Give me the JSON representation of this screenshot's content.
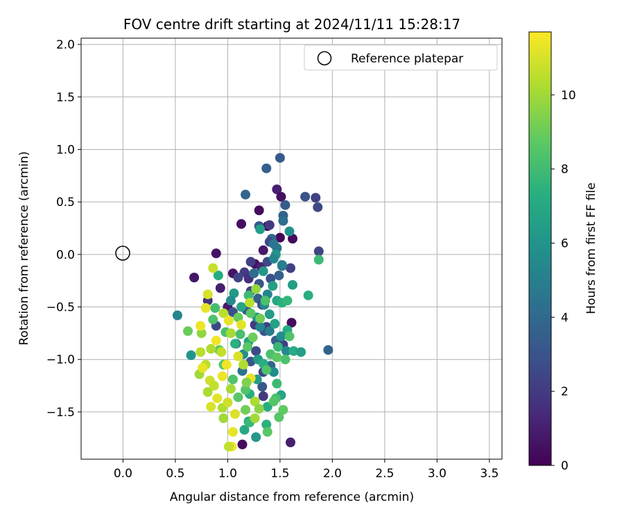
{
  "chart_data": {
    "type": "scatter",
    "title": "FOV centre drift starting at 2024/11/11 15:28:17",
    "xlabel": "Angular distance from reference (arcmin)",
    "ylabel": "Rotation from reference (arcmin)",
    "xlim": [
      -0.4,
      3.62
    ],
    "ylim": [
      -1.95,
      2.06
    ],
    "xticks": [
      0.0,
      0.5,
      1.0,
      1.5,
      2.0,
      2.5,
      3.0,
      3.5
    ],
    "xtick_labels": [
      "0.0",
      "0.5",
      "1.0",
      "1.5",
      "2.0",
      "2.5",
      "3.0",
      "3.5"
    ],
    "yticks": [
      -1.5,
      -1.0,
      -0.5,
      0.0,
      0.5,
      1.0,
      1.5,
      2.0
    ],
    "ytick_labels": [
      "−1.5",
      "−1.0",
      "−0.5",
      "0.0",
      "0.5",
      "1.0",
      "1.5",
      "2.0"
    ],
    "grid": true,
    "legend": {
      "placement": "top-right",
      "entries": [
        {
          "label": "Reference platepar",
          "marker": "open-circle"
        }
      ]
    },
    "reference_point": {
      "x": 0.0,
      "y": 0.0
    },
    "colorbar": {
      "label": "Hours from first FF file",
      "colormap": "viridis",
      "range": [
        0,
        11.7
      ],
      "ticks": [
        0,
        2,
        4,
        6,
        8,
        10
      ],
      "tick_labels": [
        "0",
        "2",
        "4",
        "6",
        "8",
        "10"
      ]
    },
    "points": [
      {
        "x": 0.89,
        "y": 0.01,
        "h": 0.6
      },
      {
        "x": 1.13,
        "y": 0.29,
        "h": 0.4
      },
      {
        "x": 1.3,
        "y": 0.42,
        "h": 0.3
      },
      {
        "x": 1.38,
        "y": 0.27,
        "h": 0.2
      },
      {
        "x": 1.47,
        "y": 0.62,
        "h": 1.0
      },
      {
        "x": 1.51,
        "y": 0.55,
        "h": 0.5
      },
      {
        "x": 1.62,
        "y": 0.15,
        "h": 0.3
      },
      {
        "x": 1.5,
        "y": 0.16,
        "h": 0.2
      },
      {
        "x": 1.34,
        "y": 0.04,
        "h": 0.8
      },
      {
        "x": 1.26,
        "y": -0.09,
        "h": 0.5
      },
      {
        "x": 1.32,
        "y": -0.12,
        "h": 1.2
      },
      {
        "x": 1.61,
        "y": -0.65,
        "h": 0.4
      },
      {
        "x": 1.6,
        "y": -1.79,
        "h": 1.0
      },
      {
        "x": 1.14,
        "y": -1.81,
        "h": 0.3
      },
      {
        "x": 0.68,
        "y": -0.22,
        "h": 0.7
      },
      {
        "x": 0.93,
        "y": -0.32,
        "h": 1.0
      },
      {
        "x": 1.0,
        "y": -0.5,
        "h": 0.8
      },
      {
        "x": 0.81,
        "y": -0.44,
        "h": 1.7
      },
      {
        "x": 1.05,
        "y": -0.18,
        "h": 0.6
      },
      {
        "x": 1.37,
        "y": 0.82,
        "h": 3.5
      },
      {
        "x": 1.5,
        "y": 0.92,
        "h": 3.3
      },
      {
        "x": 1.17,
        "y": 0.57,
        "h": 3.8
      },
      {
        "x": 1.74,
        "y": 0.55,
        "h": 3.0
      },
      {
        "x": 1.84,
        "y": 0.54,
        "h": 2.3
      },
      {
        "x": 1.86,
        "y": 0.45,
        "h": 2.6
      },
      {
        "x": 1.87,
        "y": 0.03,
        "h": 2.4
      },
      {
        "x": 1.96,
        "y": -0.91,
        "h": 3.7
      },
      {
        "x": 1.55,
        "y": 0.47,
        "h": 3.3
      },
      {
        "x": 1.53,
        "y": 0.37,
        "h": 3.7
      },
      {
        "x": 1.53,
        "y": 0.32,
        "h": 4.2
      },
      {
        "x": 1.4,
        "y": 0.28,
        "h": 2.0
      },
      {
        "x": 1.3,
        "y": 0.27,
        "h": 3.2
      },
      {
        "x": 1.42,
        "y": 0.15,
        "h": 3.9
      },
      {
        "x": 1.4,
        "y": 0.12,
        "h": 2.7
      },
      {
        "x": 1.44,
        "y": 0.1,
        "h": 4.6
      },
      {
        "x": 1.47,
        "y": 0.06,
        "h": 4.5
      },
      {
        "x": 1.22,
        "y": -0.07,
        "h": 2.2
      },
      {
        "x": 1.38,
        "y": -0.07,
        "h": 2.6
      },
      {
        "x": 1.16,
        "y": -0.17,
        "h": 2.0
      },
      {
        "x": 1.1,
        "y": -0.22,
        "h": 2.4
      },
      {
        "x": 1.2,
        "y": -0.23,
        "h": 1.6
      },
      {
        "x": 1.41,
        "y": -0.23,
        "h": 2.9
      },
      {
        "x": 1.49,
        "y": -0.2,
        "h": 3.6
      },
      {
        "x": 1.6,
        "y": -0.13,
        "h": 2.2
      },
      {
        "x": 1.52,
        "y": -0.11,
        "h": 4.3
      },
      {
        "x": 1.3,
        "y": -0.28,
        "h": 3.1
      },
      {
        "x": 1.25,
        "y": -0.18,
        "h": 4.1
      },
      {
        "x": 1.22,
        "y": -0.35,
        "h": 2.4
      },
      {
        "x": 1.29,
        "y": -0.42,
        "h": 3.6
      },
      {
        "x": 1.33,
        "y": -0.48,
        "h": 2.1
      },
      {
        "x": 1.18,
        "y": -0.53,
        "h": 3.3
      },
      {
        "x": 1.05,
        "y": -0.55,
        "h": 2.8
      },
      {
        "x": 0.89,
        "y": -0.68,
        "h": 2.5
      },
      {
        "x": 1.26,
        "y": -0.67,
        "h": 2.0
      },
      {
        "x": 1.35,
        "y": -0.73,
        "h": 3.0
      },
      {
        "x": 1.08,
        "y": -0.85,
        "h": 3.4
      },
      {
        "x": 1.22,
        "y": -1.02,
        "h": 3.1
      },
      {
        "x": 1.14,
        "y": -1.11,
        "h": 4.4
      },
      {
        "x": 1.34,
        "y": -1.12,
        "h": 2.4
      },
      {
        "x": 1.33,
        "y": -1.26,
        "h": 3.2
      },
      {
        "x": 1.34,
        "y": -1.35,
        "h": 2.0
      },
      {
        "x": 1.4,
        "y": -1.09,
        "h": 4.6
      },
      {
        "x": 1.27,
        "y": -0.92,
        "h": 2.6
      },
      {
        "x": 1.37,
        "y": -0.69,
        "h": 2.2
      },
      {
        "x": 1.46,
        "y": -0.82,
        "h": 3.5
      },
      {
        "x": 1.53,
        "y": -0.86,
        "h": 2.2
      },
      {
        "x": 1.41,
        "y": -1.06,
        "h": 3.8
      },
      {
        "x": 1.62,
        "y": -0.29,
        "h": 6.5
      },
      {
        "x": 1.46,
        "y": 0.0,
        "h": 6.0
      },
      {
        "x": 1.31,
        "y": 0.24,
        "h": 6.5
      },
      {
        "x": 1.59,
        "y": 0.22,
        "h": 5.8
      },
      {
        "x": 1.44,
        "y": -0.04,
        "h": 5.4
      },
      {
        "x": 1.52,
        "y": -0.1,
        "h": 5.0
      },
      {
        "x": 1.34,
        "y": -0.16,
        "h": 6.2
      },
      {
        "x": 1.43,
        "y": -0.3,
        "h": 6.6
      },
      {
        "x": 1.38,
        "y": -0.38,
        "h": 5.2
      },
      {
        "x": 1.47,
        "y": -0.44,
        "h": 6.8
      },
      {
        "x": 1.52,
        "y": -0.46,
        "h": 7.4
      },
      {
        "x": 1.57,
        "y": -0.44,
        "h": 7.7
      },
      {
        "x": 1.35,
        "y": -0.48,
        "h": 5.6
      },
      {
        "x": 1.4,
        "y": -0.57,
        "h": 6.4
      },
      {
        "x": 1.28,
        "y": -0.6,
        "h": 6.0
      },
      {
        "x": 1.31,
        "y": -0.69,
        "h": 5.4
      },
      {
        "x": 1.4,
        "y": -0.73,
        "h": 5.0
      },
      {
        "x": 1.45,
        "y": -0.66,
        "h": 6.7
      },
      {
        "x": 1.57,
        "y": -0.72,
        "h": 7.2
      },
      {
        "x": 1.51,
        "y": -0.78,
        "h": 5.8
      },
      {
        "x": 1.48,
        "y": -0.88,
        "h": 7.8
      },
      {
        "x": 1.56,
        "y": -0.92,
        "h": 5.5
      },
      {
        "x": 1.63,
        "y": -0.92,
        "h": 7.2
      },
      {
        "x": 1.7,
        "y": -0.93,
        "h": 6.5
      },
      {
        "x": 1.2,
        "y": -0.39,
        "h": 7.9
      },
      {
        "x": 1.06,
        "y": -0.37,
        "h": 6.3
      },
      {
        "x": 1.03,
        "y": -0.44,
        "h": 5.5
      },
      {
        "x": 1.13,
        "y": -0.5,
        "h": 6.8
      },
      {
        "x": 0.91,
        "y": -0.2,
        "h": 7.2
      },
      {
        "x": 1.77,
        "y": -0.39,
        "h": 7.3
      },
      {
        "x": 1.87,
        "y": -0.05,
        "h": 7.9
      },
      {
        "x": 0.52,
        "y": -0.58,
        "h": 5.3
      },
      {
        "x": 0.65,
        "y": -0.96,
        "h": 6.0
      },
      {
        "x": 1.07,
        "y": -0.85,
        "h": 7.4
      },
      {
        "x": 1.2,
        "y": -0.83,
        "h": 6.6
      },
      {
        "x": 1.15,
        "y": -0.95,
        "h": 5.8
      },
      {
        "x": 1.29,
        "y": -1.0,
        "h": 6.3
      },
      {
        "x": 1.34,
        "y": -1.04,
        "h": 7.3
      },
      {
        "x": 1.44,
        "y": -1.12,
        "h": 5.6
      },
      {
        "x": 1.28,
        "y": -1.19,
        "h": 6.4
      },
      {
        "x": 1.21,
        "y": -1.33,
        "h": 7.2
      },
      {
        "x": 1.51,
        "y": -1.34,
        "h": 6.8
      },
      {
        "x": 1.38,
        "y": -1.45,
        "h": 7.2
      },
      {
        "x": 1.2,
        "y": -1.59,
        "h": 6.8
      },
      {
        "x": 1.27,
        "y": -1.74,
        "h": 6.2
      },
      {
        "x": 1.16,
        "y": -1.67,
        "h": 7.0
      },
      {
        "x": 1.21,
        "y": -1.6,
        "h": 7.8
      },
      {
        "x": 1.37,
        "y": -1.62,
        "h": 7.4
      },
      {
        "x": 1.46,
        "y": -1.37,
        "h": 8.2
      },
      {
        "x": 1.47,
        "y": -1.23,
        "h": 7.9
      },
      {
        "x": 1.55,
        "y": -1.0,
        "h": 8.3
      },
      {
        "x": 1.59,
        "y": -0.78,
        "h": 8.4
      },
      {
        "x": 1.36,
        "y": -0.44,
        "h": 8.3
      },
      {
        "x": 1.22,
        "y": -0.56,
        "h": 8.6
      },
      {
        "x": 1.1,
        "y": -0.6,
        "h": 8.9
      },
      {
        "x": 0.88,
        "y": -0.51,
        "h": 8.1
      },
      {
        "x": 0.86,
        "y": -0.62,
        "h": 8.4
      },
      {
        "x": 0.98,
        "y": -0.74,
        "h": 8.3
      },
      {
        "x": 1.12,
        "y": -0.76,
        "h": 8.2
      },
      {
        "x": 1.19,
        "y": -0.88,
        "h": 8.6
      },
      {
        "x": 1.41,
        "y": -0.95,
        "h": 8.3
      },
      {
        "x": 1.47,
        "y": -0.98,
        "h": 8.7
      },
      {
        "x": 1.37,
        "y": -1.1,
        "h": 8.4
      },
      {
        "x": 1.44,
        "y": -1.4,
        "h": 8.5
      },
      {
        "x": 1.53,
        "y": -1.48,
        "h": 8.8
      },
      {
        "x": 1.49,
        "y": -1.55,
        "h": 8.6
      },
      {
        "x": 1.38,
        "y": -1.69,
        "h": 8.6
      },
      {
        "x": 1.1,
        "y": -1.36,
        "h": 8.6
      },
      {
        "x": 1.05,
        "y": -1.19,
        "h": 8.4
      },
      {
        "x": 1.17,
        "y": -1.29,
        "h": 8.5
      },
      {
        "x": 0.96,
        "y": -1.05,
        "h": 8.7
      },
      {
        "x": 0.92,
        "y": -0.91,
        "h": 8.8
      },
      {
        "x": 0.62,
        "y": -0.73,
        "h": 9.0
      },
      {
        "x": 1.24,
        "y": -0.79,
        "h": 9.0
      },
      {
        "x": 1.31,
        "y": -0.61,
        "h": 9.1
      },
      {
        "x": 1.17,
        "y": -1.48,
        "h": 9.1
      },
      {
        "x": 0.75,
        "y": -0.75,
        "h": 9.7
      },
      {
        "x": 0.74,
        "y": -0.93,
        "h": 10.4
      },
      {
        "x": 0.79,
        "y": -1.05,
        "h": 10.5
      },
      {
        "x": 0.83,
        "y": -1.2,
        "h": 10.8
      },
      {
        "x": 0.73,
        "y": -1.14,
        "h": 10.0
      },
      {
        "x": 0.76,
        "y": -1.08,
        "h": 11.3
      },
      {
        "x": 0.81,
        "y": -1.31,
        "h": 10.2
      },
      {
        "x": 0.84,
        "y": -1.45,
        "h": 11.0
      },
      {
        "x": 0.95,
        "y": -1.46,
        "h": 10.3
      },
      {
        "x": 0.9,
        "y": -1.37,
        "h": 11.2
      },
      {
        "x": 0.87,
        "y": -1.25,
        "h": 10.6
      },
      {
        "x": 0.95,
        "y": -1.16,
        "h": 11.4
      },
      {
        "x": 1.03,
        "y": -1.28,
        "h": 10.1
      },
      {
        "x": 1.0,
        "y": -1.41,
        "h": 10.8
      },
      {
        "x": 1.07,
        "y": -1.52,
        "h": 11.1
      },
      {
        "x": 1.05,
        "y": -1.69,
        "h": 11.3
      },
      {
        "x": 1.04,
        "y": -1.83,
        "h": 11.5
      },
      {
        "x": 1.01,
        "y": -1.83,
        "h": 10.6
      },
      {
        "x": 0.96,
        "y": -1.56,
        "h": 10.0
      },
      {
        "x": 0.81,
        "y": -0.38,
        "h": 11.0
      },
      {
        "x": 0.86,
        "y": -0.13,
        "h": 10.7
      },
      {
        "x": 0.79,
        "y": -0.51,
        "h": 11.3
      },
      {
        "x": 0.96,
        "y": -0.56,
        "h": 10.5
      },
      {
        "x": 1.01,
        "y": -0.63,
        "h": 11.3
      },
      {
        "x": 1.03,
        "y": -0.75,
        "h": 10.1
      },
      {
        "x": 0.89,
        "y": -0.82,
        "h": 11.5
      },
      {
        "x": 0.84,
        "y": -0.9,
        "h": 10.3
      },
      {
        "x": 0.94,
        "y": -0.93,
        "h": 10.6
      },
      {
        "x": 1.1,
        "y": -0.97,
        "h": 11.0
      },
      {
        "x": 1.15,
        "y": -1.05,
        "h": 10.3
      },
      {
        "x": 1.22,
        "y": -1.18,
        "h": 11.3
      },
      {
        "x": 1.26,
        "y": -1.4,
        "h": 10.2
      },
      {
        "x": 1.3,
        "y": -1.47,
        "h": 9.6
      },
      {
        "x": 1.26,
        "y": -1.56,
        "h": 10.0
      },
      {
        "x": 1.21,
        "y": -0.46,
        "h": 10.5
      },
      {
        "x": 1.13,
        "y": -0.67,
        "h": 11.2
      },
      {
        "x": 1.27,
        "y": -0.33,
        "h": 9.8
      },
      {
        "x": 0.99,
        "y": -1.05,
        "h": 11.5
      },
      {
        "x": 1.18,
        "y": -1.22,
        "h": 9.4
      },
      {
        "x": 0.74,
        "y": -0.68,
        "h": 11.4
      }
    ]
  }
}
